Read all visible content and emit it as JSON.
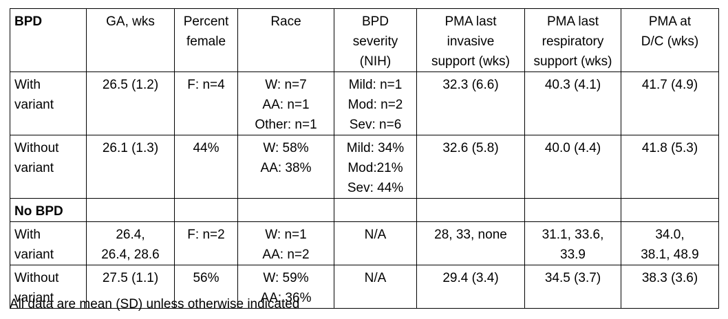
{
  "header": {
    "group": "BPD",
    "ga": "GA, wks",
    "female": [
      "Percent",
      "female"
    ],
    "race": "Race",
    "severity": [
      "BPD",
      "severity",
      "(NIH)"
    ],
    "pma_invasive": [
      "PMA last",
      "invasive",
      "support (wks)"
    ],
    "pma_resp": [
      "PMA last",
      "respiratory",
      "support (wks)"
    ],
    "pma_dc": [
      "PMA at",
      "D/C (wks)"
    ]
  },
  "rows": [
    {
      "label": [
        "With",
        "variant"
      ],
      "ga": [
        "26.5 (1.2)"
      ],
      "female": [
        "F: n=4"
      ],
      "race": [
        "W: n=7",
        "AA: n=1",
        "Other: n=1"
      ],
      "severity": [
        "Mild: n=1",
        "Mod: n=2",
        "Sev: n=6"
      ],
      "pma_invasive": [
        "32.3 (6.6)"
      ],
      "pma_resp": [
        "40.3 (4.1)"
      ],
      "pma_dc": [
        "41.7 (4.9)"
      ]
    },
    {
      "label": [
        "Without",
        "variant"
      ],
      "ga": [
        "26.1 (1.3)"
      ],
      "female": [
        "44%"
      ],
      "race": [
        "W: 58%",
        "AA: 38%"
      ],
      "severity": [
        "Mild: 34%",
        "Mod:21%",
        "Sev: 44%"
      ],
      "pma_invasive": [
        "32.6 (5.8)"
      ],
      "pma_resp": [
        "40.0 (4.4)"
      ],
      "pma_dc": [
        "41.8 (5.3)"
      ]
    },
    {
      "section": "No BPD"
    },
    {
      "label": [
        "With",
        "variant"
      ],
      "ga": [
        "26.4,",
        "26.4, 28.6"
      ],
      "female": [
        "F: n=2"
      ],
      "race": [
        "W: n=1",
        "AA: n=2"
      ],
      "severity": [
        "N/A"
      ],
      "pma_invasive": [
        "28, 33, none"
      ],
      "pma_resp": [
        "31.1, 33.6,",
        "33.9"
      ],
      "pma_dc": [
        "34.0,",
        "38.1, 48.9"
      ]
    },
    {
      "label": [
        "Without",
        "variant"
      ],
      "ga": [
        "27.5 (1.1)"
      ],
      "female": [
        "56%"
      ],
      "race": [
        "W: 59%",
        "AA: 36%"
      ],
      "severity": [
        "N/A"
      ],
      "pma_invasive": [
        "29.4 (3.4)"
      ],
      "pma_resp": [
        "34.5 (3.7)"
      ],
      "pma_dc": [
        "38.3 (3.6)"
      ]
    }
  ],
  "footnote": "All data are mean (SD) unless otherwise indicated"
}
